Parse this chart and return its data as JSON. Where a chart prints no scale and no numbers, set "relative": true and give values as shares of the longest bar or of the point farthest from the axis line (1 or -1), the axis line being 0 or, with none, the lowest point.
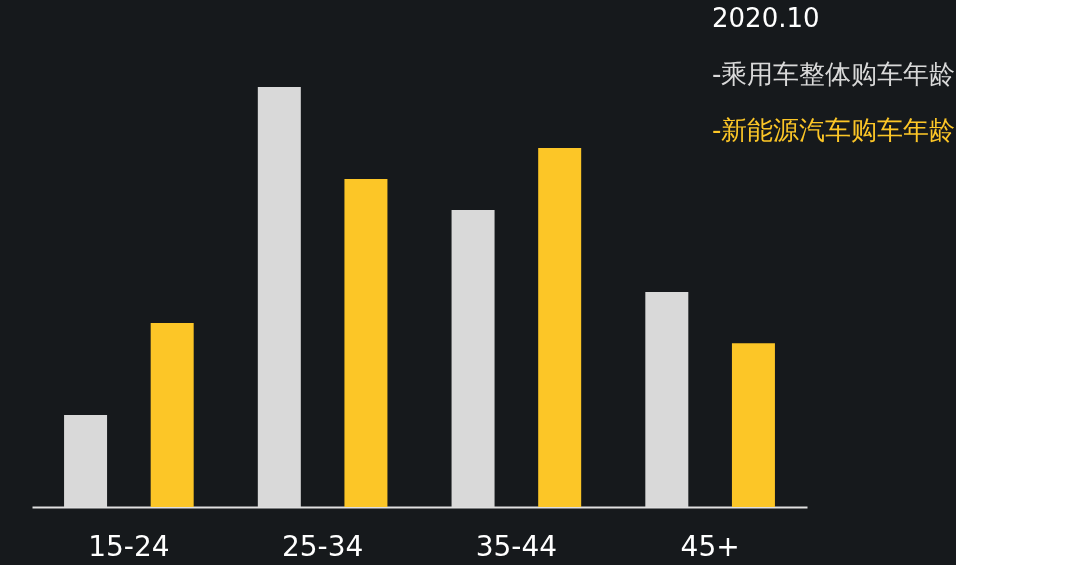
{
  "chart_data": {
    "type": "bar",
    "relative": true,
    "legend_title": "2020.10",
    "legend": "top right",
    "categories": [
      "15-24",
      "25-34",
      "35-44",
      "45+"
    ],
    "series": [
      {
        "name": "-乘用车整体购车年龄",
        "color": "#d9d9d9",
        "values": [
          0.219,
          1,
          0.707,
          0.512
        ]
      },
      {
        "name": "-新能源汽车购车年龄",
        "color": "#fcc627",
        "values": [
          0.438,
          0.781,
          0.855,
          0.39
        ]
      }
    ]
  }
}
